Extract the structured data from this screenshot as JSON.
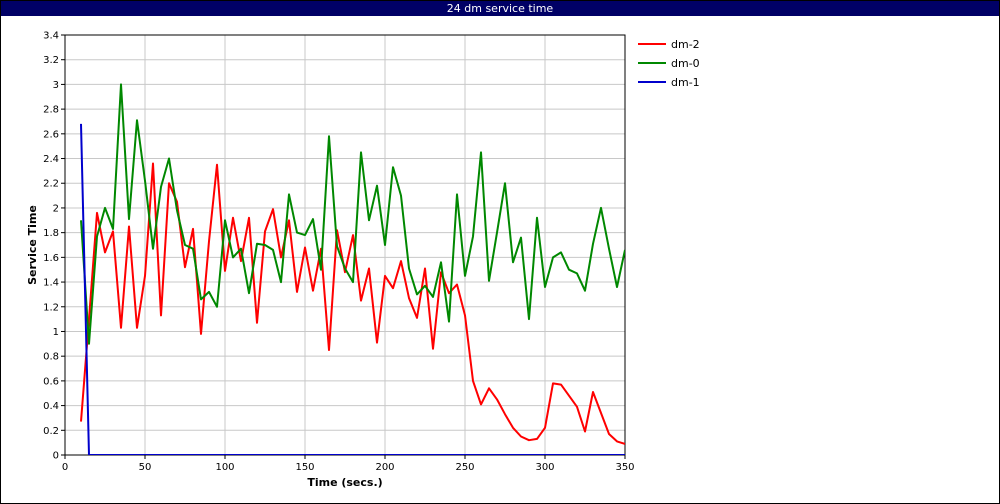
{
  "window": {
    "title": "24 dm service time"
  },
  "chart_data": {
    "type": "line",
    "title": "",
    "xlabel": "Time (secs.)",
    "ylabel": "Service Time",
    "xlim": [
      0,
      350
    ],
    "ylim": [
      0,
      3.4
    ],
    "x_ticks": [
      0,
      50,
      100,
      150,
      200,
      250,
      300,
      350
    ],
    "y_ticks": [
      0,
      0.2,
      0.4,
      0.6,
      0.8,
      1,
      1.2,
      1.4,
      1.6,
      1.8,
      2,
      2.2,
      2.4,
      2.6,
      2.8,
      3,
      3.2,
      3.4
    ],
    "grid": true,
    "legend_position": "right",
    "series": [
      {
        "name": "dm-2",
        "color": "#ff0000",
        "x": [
          10,
          15,
          20,
          25,
          30,
          35,
          40,
          45,
          50,
          55,
          60,
          65,
          70,
          75,
          80,
          85,
          90,
          95,
          100,
          105,
          110,
          115,
          120,
          125,
          130,
          135,
          140,
          145,
          150,
          155,
          160,
          165,
          170,
          175,
          180,
          185,
          190,
          195,
          200,
          205,
          210,
          215,
          220,
          225,
          230,
          235,
          240,
          245,
          250,
          255,
          260,
          265,
          270,
          275,
          280,
          285,
          290,
          295,
          300,
          305,
          310,
          315,
          320,
          325,
          330,
          335,
          340,
          345,
          350
        ],
        "y": [
          0.27,
          1.1,
          1.96,
          1.64,
          1.81,
          1.03,
          1.85,
          1.03,
          1.45,
          2.36,
          1.13,
          2.2,
          2.05,
          1.52,
          1.83,
          0.98,
          1.73,
          2.35,
          1.49,
          1.92,
          1.57,
          1.92,
          1.07,
          1.81,
          1.99,
          1.6,
          1.9,
          1.32,
          1.68,
          1.33,
          1.67,
          0.85,
          1.82,
          1.48,
          1.78,
          1.25,
          1.51,
          0.91,
          1.45,
          1.35,
          1.57,
          1.27,
          1.11,
          1.51,
          0.86,
          1.48,
          1.31,
          1.38,
          1.13,
          0.6,
          0.41,
          0.54,
          0.45,
          0.33,
          0.22,
          0.15,
          0.12,
          0.13,
          0.22,
          0.58,
          0.57,
          0.48,
          0.39,
          0.19,
          0.51,
          0.34,
          0.17,
          0.11,
          0.09
        ]
      },
      {
        "name": "dm-0",
        "color": "#008800",
        "x": [
          10,
          15,
          20,
          25,
          30,
          35,
          40,
          45,
          50,
          55,
          60,
          65,
          70,
          75,
          80,
          85,
          90,
          95,
          100,
          105,
          110,
          115,
          120,
          125,
          130,
          135,
          140,
          145,
          150,
          155,
          160,
          165,
          170,
          175,
          180,
          185,
          190,
          195,
          200,
          205,
          210,
          215,
          220,
          225,
          230,
          235,
          240,
          245,
          250,
          255,
          260,
          265,
          270,
          275,
          280,
          285,
          290,
          295,
          300,
          305,
          310,
          315,
          320,
          325,
          330,
          335,
          340,
          345,
          350
        ],
        "y": [
          1.9,
          0.9,
          1.77,
          2.0,
          1.83,
          3.0,
          1.91,
          2.71,
          2.22,
          1.67,
          2.17,
          2.4,
          1.98,
          1.7,
          1.67,
          1.26,
          1.32,
          1.2,
          1.9,
          1.6,
          1.67,
          1.31,
          1.71,
          1.7,
          1.66,
          1.4,
          2.11,
          1.8,
          1.78,
          1.91,
          1.5,
          2.58,
          1.69,
          1.51,
          1.4,
          2.45,
          1.9,
          2.18,
          1.7,
          2.33,
          2.1,
          1.51,
          1.3,
          1.37,
          1.28,
          1.56,
          1.08,
          2.11,
          1.45,
          1.77,
          2.45,
          1.41,
          1.8,
          2.2,
          1.56,
          1.76,
          1.1,
          1.92,
          1.36,
          1.6,
          1.64,
          1.5,
          1.47,
          1.33,
          1.71,
          2.0,
          1.67,
          1.36,
          1.66
        ]
      },
      {
        "name": "dm-1",
        "color": "#0000cc",
        "x": [
          10,
          15,
          20,
          350
        ],
        "y": [
          2.68,
          0.0,
          0.0,
          0.0
        ]
      }
    ]
  }
}
